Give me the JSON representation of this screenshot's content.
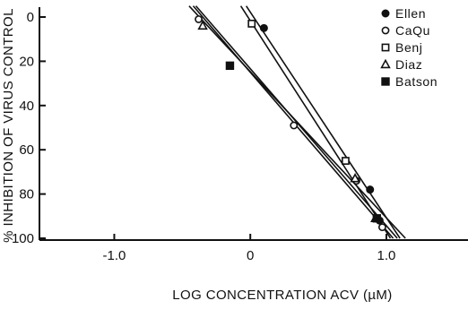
{
  "chart_data": {
    "type": "line",
    "title": "",
    "xlabel": "LOG CONCENTRATION ACV (µM)",
    "ylabel": "% INHIBITION OF VIRUS CONTROL",
    "xlim": [
      -1.55,
      1.6
    ],
    "ylim": [
      0,
      100
    ],
    "y_inverted": true,
    "x_ticks": [
      -1.0,
      0,
      1.0
    ],
    "x_tick_labels": [
      "-1.0",
      "0",
      "1.0"
    ],
    "y_ticks": [
      0,
      20,
      40,
      60,
      80,
      100
    ],
    "y_tick_labels": [
      "0",
      "20",
      "40",
      "60",
      "80",
      "100"
    ],
    "legend_position": "top-right",
    "series": [
      {
        "name": "Ellen",
        "marker": "filled-circle",
        "points": [
          [
            0.1,
            5
          ],
          [
            0.88,
            78
          ],
          [
            0.95,
            92
          ]
        ],
        "fit": [
          [
            -0.03,
            -5
          ],
          [
            1.1,
            100
          ]
        ]
      },
      {
        "name": "CaQu",
        "marker": "open-circle",
        "points": [
          [
            -0.38,
            1
          ],
          [
            0.32,
            49
          ],
          [
            0.78,
            74
          ],
          [
            0.97,
            95
          ]
        ],
        "fit": [
          [
            -0.42,
            -5
          ],
          [
            1.05,
            100
          ]
        ]
      },
      {
        "name": "Benj",
        "marker": "open-square",
        "points": [
          [
            0.01,
            3
          ],
          [
            0.7,
            65
          ]
        ],
        "fit": [
          [
            -0.07,
            -5
          ],
          [
            1.03,
            100
          ]
        ]
      },
      {
        "name": "Diaz",
        "marker": "open-triangle",
        "points": [
          [
            -0.35,
            4
          ],
          [
            0.77,
            73
          ],
          [
            0.92,
            91
          ]
        ],
        "fit": [
          [
            -0.45,
            -5
          ],
          [
            1.14,
            100
          ]
        ]
      },
      {
        "name": "Batson",
        "marker": "filled-square",
        "points": [
          [
            -0.15,
            22
          ],
          [
            0.93,
            91
          ]
        ],
        "fit": [
          [
            -0.4,
            -5
          ],
          [
            1.08,
            100
          ]
        ]
      }
    ]
  }
}
